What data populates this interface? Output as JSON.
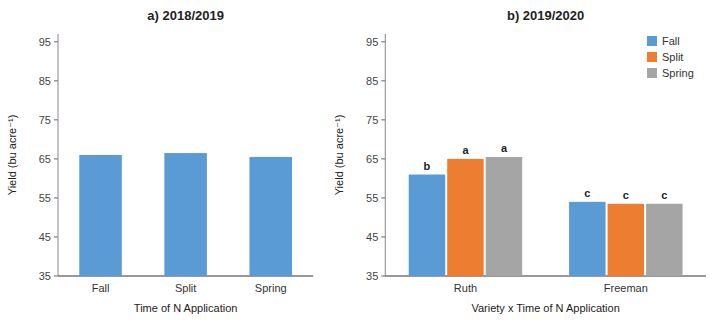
{
  "chart_data": [
    {
      "type": "bar",
      "title": "a) 2018/2019",
      "categories": [
        "Fall",
        "Split",
        "Spring"
      ],
      "values": [
        66,
        66.5,
        65.5
      ],
      "color": "#5B9BD5",
      "xlabel": "Time of N Application",
      "ylabel": "Yield (bu acre⁻¹)",
      "ylim": [
        35,
        97
      ],
      "yticks": [
        35,
        45,
        55,
        65,
        75,
        85,
        95
      ],
      "grid": false
    },
    {
      "type": "bar",
      "title": "b) 2019/2020",
      "categories": [
        "Ruth",
        "Freeman"
      ],
      "series": [
        {
          "name": "Fall",
          "color": "#5B9BD5",
          "values": [
            61,
            54
          ],
          "annotations": [
            "b",
            "c"
          ]
        },
        {
          "name": "Split",
          "color": "#ED7D31",
          "values": [
            65,
            53.5
          ],
          "annotations": [
            "a",
            "c"
          ]
        },
        {
          "name": "Spring",
          "color": "#A5A5A5",
          "values": [
            65.5,
            53.5
          ],
          "annotations": [
            "a",
            "c"
          ]
        }
      ],
      "xlabel": "Variety x Time of N Application",
      "ylabel": "Yield (bu acre⁻¹)",
      "ylim": [
        35,
        97
      ],
      "yticks": [
        35,
        45,
        55,
        65,
        75,
        85,
        95
      ],
      "grid": false,
      "legend": "upper right"
    }
  ]
}
